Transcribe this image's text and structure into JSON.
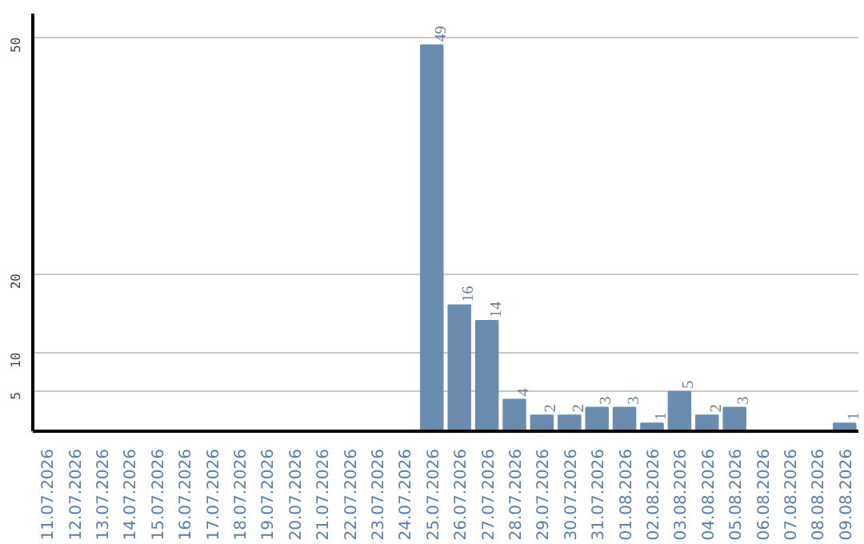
{
  "chart_data": {
    "type": "bar",
    "categories": [
      "11.07.2026",
      "12.07.2026",
      "13.07.2026",
      "14.07.2026",
      "15.07.2026",
      "16.07.2026",
      "17.07.2026",
      "18.07.2026",
      "19.07.2026",
      "20.07.2026",
      "21.07.2026",
      "22.07.2026",
      "23.07.2026",
      "24.07.2026",
      "25.07.2026",
      "26.07.2026",
      "27.07.2026",
      "28.07.2026",
      "29.07.2026",
      "30.07.2026",
      "31.07.2026",
      "01.08.2026",
      "02.08.2026",
      "03.08.2026",
      "04.08.2026",
      "05.08.2026",
      "06.08.2026",
      "07.08.2026",
      "08.08.2026",
      "09.08.2026"
    ],
    "values": [
      0,
      0,
      0,
      0,
      0,
      0,
      0,
      0,
      0,
      0,
      0,
      0,
      0,
      0,
      49,
      16,
      14,
      4,
      2,
      2,
      3,
      3,
      1,
      5,
      2,
      3,
      0,
      0,
      0,
      1
    ],
    "value_labels": [
      null,
      null,
      null,
      null,
      null,
      null,
      null,
      null,
      null,
      null,
      null,
      null,
      null,
      null,
      "49",
      "16",
      "14",
      "4",
      "2",
      "2",
      "3",
      "3",
      "1",
      "5",
      "2",
      "3",
      null,
      null,
      null,
      "1"
    ],
    "color": "#6a8caf",
    "ylim": [
      0,
      53
    ],
    "yticks": [
      5,
      10,
      20,
      50
    ],
    "grid": "y"
  }
}
